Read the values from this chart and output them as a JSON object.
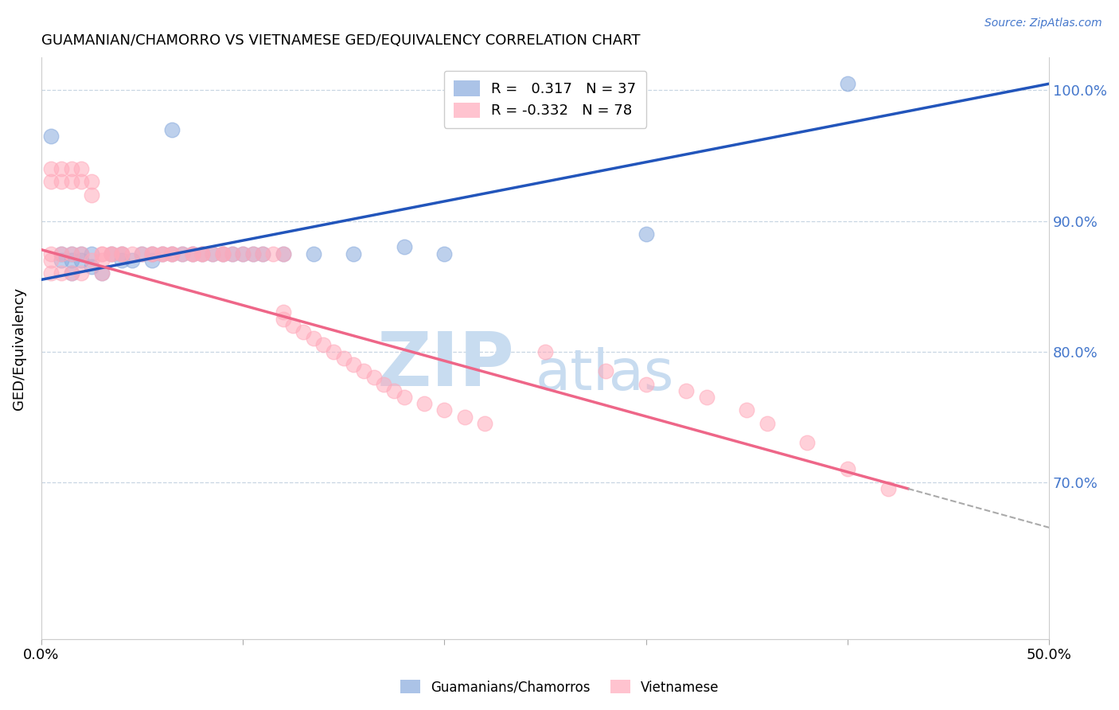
{
  "title": "GUAMANIAN/CHAMORRO VS VIETNAMESE GED/EQUIVALENCY CORRELATION CHART",
  "source": "Source: ZipAtlas.com",
  "ylabel": "GED/Equivalency",
  "xlim": [
    0.0,
    0.5
  ],
  "ylim": [
    0.58,
    1.025
  ],
  "x_ticks": [
    0.0,
    0.1,
    0.2,
    0.3,
    0.4,
    0.5
  ],
  "x_tick_labels": [
    "0.0%",
    "",
    "",
    "",
    "",
    "50.0%"
  ],
  "y_ticks": [
    0.7,
    0.8,
    0.9,
    1.0
  ],
  "y_tick_labels": [
    "70.0%",
    "80.0%",
    "90.0%",
    "100.0%"
  ],
  "blue_color": "#88AADD",
  "pink_color": "#FFAABB",
  "blue_line_color": "#2255BB",
  "pink_line_color": "#EE6688",
  "dashed_line_color": "#AAAAAA",
  "legend_R_blue": "0.317",
  "legend_N_blue": "37",
  "legend_R_pink": "-0.332",
  "legend_N_pink": "78",
  "blue_scatter_x": [
    0.005,
    0.01,
    0.01,
    0.015,
    0.015,
    0.015,
    0.02,
    0.02,
    0.025,
    0.025,
    0.03,
    0.035,
    0.04,
    0.04,
    0.045,
    0.05,
    0.055,
    0.055,
    0.06,
    0.065,
    0.07,
    0.075,
    0.08,
    0.085,
    0.09,
    0.095,
    0.1,
    0.105,
    0.11,
    0.12,
    0.135,
    0.155,
    0.18,
    0.2,
    0.3,
    0.4,
    0.065
  ],
  "blue_scatter_y": [
    0.965,
    0.875,
    0.87,
    0.875,
    0.87,
    0.86,
    0.875,
    0.87,
    0.875,
    0.865,
    0.86,
    0.875,
    0.87,
    0.875,
    0.87,
    0.875,
    0.875,
    0.87,
    0.875,
    0.875,
    0.875,
    0.875,
    0.875,
    0.875,
    0.875,
    0.875,
    0.875,
    0.875,
    0.875,
    0.875,
    0.875,
    0.875,
    0.88,
    0.875,
    0.89,
    1.005,
    0.97
  ],
  "pink_scatter_x": [
    0.005,
    0.005,
    0.005,
    0.005,
    0.01,
    0.01,
    0.01,
    0.015,
    0.015,
    0.015,
    0.015,
    0.02,
    0.02,
    0.02,
    0.02,
    0.025,
    0.025,
    0.025,
    0.03,
    0.03,
    0.03,
    0.03,
    0.035,
    0.035,
    0.04,
    0.04,
    0.045,
    0.05,
    0.055,
    0.055,
    0.06,
    0.06,
    0.065,
    0.065,
    0.07,
    0.075,
    0.075,
    0.08,
    0.08,
    0.085,
    0.09,
    0.09,
    0.095,
    0.1,
    0.105,
    0.11,
    0.115,
    0.12,
    0.12,
    0.12,
    0.125,
    0.13,
    0.135,
    0.14,
    0.145,
    0.15,
    0.155,
    0.16,
    0.165,
    0.17,
    0.175,
    0.18,
    0.19,
    0.2,
    0.21,
    0.22,
    0.25,
    0.28,
    0.3,
    0.32,
    0.33,
    0.35,
    0.36,
    0.38,
    0.4,
    0.42,
    0.005,
    0.01
  ],
  "pink_scatter_y": [
    0.94,
    0.93,
    0.875,
    0.86,
    0.94,
    0.93,
    0.875,
    0.94,
    0.93,
    0.875,
    0.86,
    0.94,
    0.93,
    0.875,
    0.86,
    0.93,
    0.92,
    0.87,
    0.875,
    0.875,
    0.86,
    0.87,
    0.875,
    0.875,
    0.875,
    0.875,
    0.875,
    0.875,
    0.875,
    0.875,
    0.875,
    0.875,
    0.875,
    0.875,
    0.875,
    0.875,
    0.875,
    0.875,
    0.875,
    0.875,
    0.875,
    0.875,
    0.875,
    0.875,
    0.875,
    0.875,
    0.875,
    0.875,
    0.83,
    0.825,
    0.82,
    0.815,
    0.81,
    0.805,
    0.8,
    0.795,
    0.79,
    0.785,
    0.78,
    0.775,
    0.77,
    0.765,
    0.76,
    0.755,
    0.75,
    0.745,
    0.8,
    0.785,
    0.775,
    0.77,
    0.765,
    0.755,
    0.745,
    0.73,
    0.71,
    0.695,
    0.87,
    0.86
  ],
  "watermark_zip": "ZIP",
  "watermark_atlas": "atlas",
  "watermark_color": "#C8DCF0"
}
